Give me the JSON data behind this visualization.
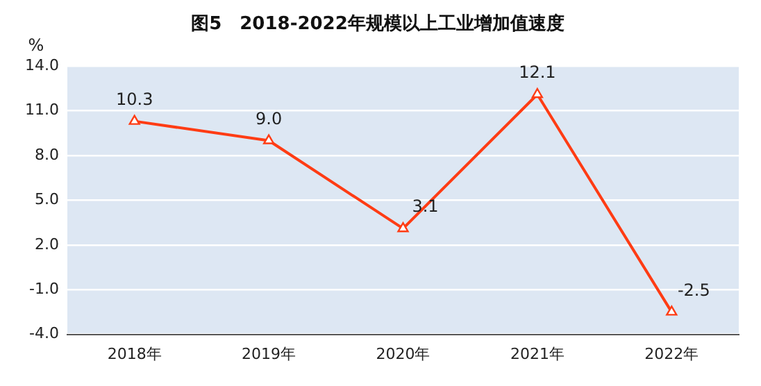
{
  "chart_data": {
    "type": "line",
    "title": "图5　2018-2022年规模以上工业增加值速度",
    "ylabel": "%",
    "categories": [
      "2018年",
      "2019年",
      "2020年",
      "2021年",
      "2022年"
    ],
    "series": [
      {
        "color": "#ff3c14",
        "values": [
          10.3,
          9.0,
          3.1,
          12.1,
          -2.5
        ],
        "value_labels": [
          "10.3",
          "9.0",
          "3.1",
          "12.1",
          "-2.5"
        ]
      }
    ],
    "ylim": [
      -4,
      14
    ],
    "yticks": [
      {
        "value": -4,
        "label": "-4.0"
      },
      {
        "value": -1,
        "label": "-1.0"
      },
      {
        "value": 2,
        "label": "2.0"
      },
      {
        "value": 5,
        "label": "5.0"
      },
      {
        "value": 8,
        "label": "8.0"
      },
      {
        "value": 11,
        "label": "11.0"
      },
      {
        "value": 14,
        "label": "14.0"
      }
    ],
    "grid": "y",
    "legend": false,
    "marker": "triangle",
    "line_style": "solid"
  }
}
